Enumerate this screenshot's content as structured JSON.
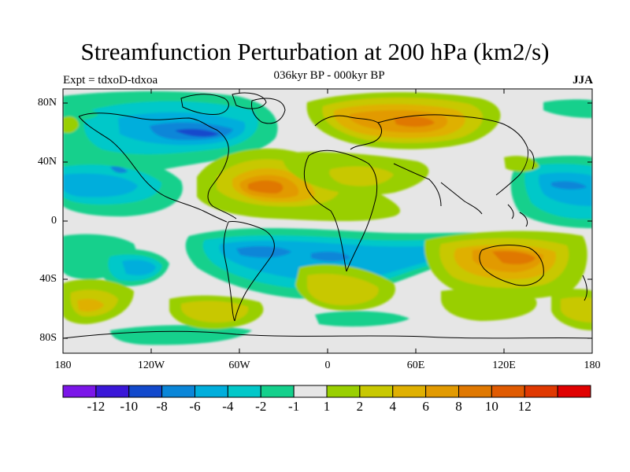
{
  "header": {
    "title": "Streamfunction Perturbation at 200 hPa (km2/s)",
    "subtitle": "036kyr BP - 000kyr BP",
    "left_label": "Expt = tdxoD-tdxoa",
    "right_label": "JJA"
  },
  "axes": {
    "lat_ticks": [
      "80N",
      "40N",
      "0",
      "40S",
      "80S"
    ],
    "lon_ticks": [
      "180",
      "120W",
      "60W",
      "0",
      "60E",
      "120E",
      "180"
    ]
  },
  "colorbar": {
    "colors": [
      "#7b16e8",
      "#3a17d8",
      "#1249cc",
      "#0a86d8",
      "#00aedc",
      "#02c8c9",
      "#14d08c",
      "#e6e6e6",
      "#99cf00",
      "#c8c800",
      "#dfb000",
      "#e29a00",
      "#e07800",
      "#e05a00",
      "#e03800",
      "#e00000"
    ],
    "labels": [
      "-12",
      "-10",
      "-8",
      "-6",
      "-4",
      "-2",
      "-1",
      "1",
      "2",
      "4",
      "6",
      "8",
      "10",
      "12"
    ]
  }
}
